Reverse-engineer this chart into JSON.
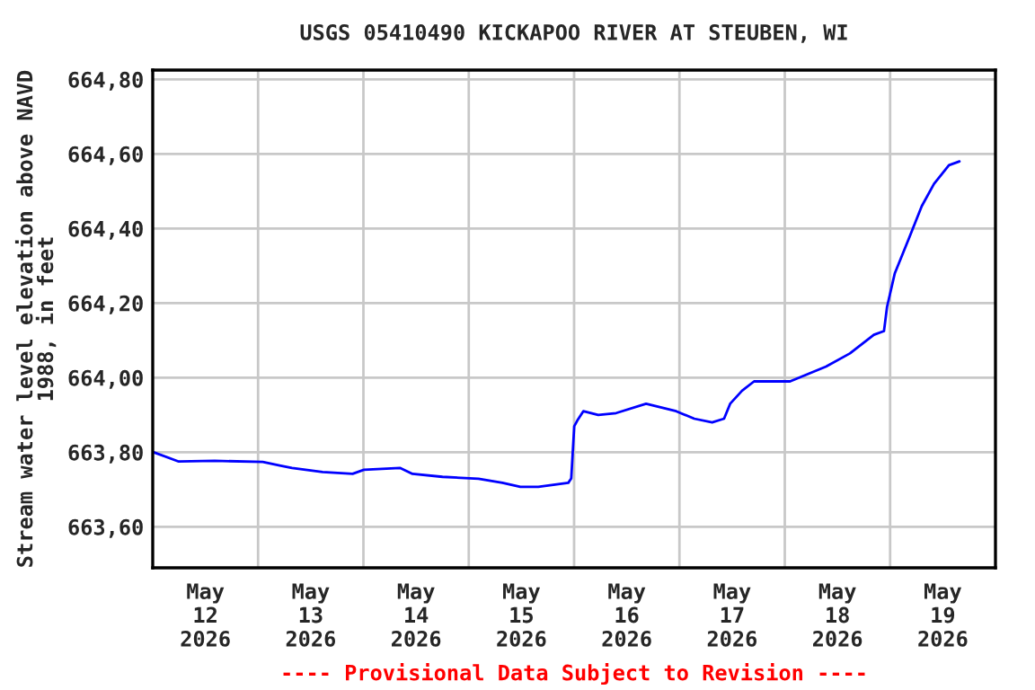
{
  "chart_data": {
    "type": "line",
    "title": "USGS 05410490 KICKAPOO RIVER AT STEUBEN, WI",
    "ylabel": "Stream water level elevation above NAVD\n1988, in feet",
    "annotations": [
      "---- Provisional Data Subject to Revision ----"
    ],
    "x": [
      "2026-05-12T00:12",
      "2026-05-12T05:56",
      "2026-05-12T14:08",
      "2026-05-13T01:04",
      "2026-05-13T05:10",
      "2026-05-13T07:44",
      "2026-05-13T14:42",
      "2026-05-13T21:32",
      "2026-05-14T00:07",
      "2026-05-14T08:19",
      "2026-05-14T11:11",
      "2026-05-14T18:01",
      "2026-05-15T02:13",
      "2026-05-15T07:40",
      "2026-05-15T11:45",
      "2026-05-15T15:51",
      "2026-05-15T22:41",
      "2026-05-15T23:21",
      "2026-05-16T00:02",
      "2026-05-16T00:44",
      "2026-05-16T02:06",
      "2026-05-16T05:30",
      "2026-05-16T09:35",
      "2026-05-16T16:24",
      "2026-05-16T23:16",
      "2026-05-17T03:22",
      "2026-05-17T07:27",
      "2026-05-17T10:10",
      "2026-05-17T11:33",
      "2026-05-17T14:16",
      "2026-05-17T17:00",
      "2026-05-18T01:12",
      "2026-05-18T05:18",
      "2026-05-18T09:24",
      "2026-05-18T14:50",
      "2026-05-18T20:18",
      "2026-05-18T22:36",
      "2026-05-18T23:18",
      "2026-05-19T01:04",
      "2026-05-19T04:30",
      "2026-05-19T07:12",
      "2026-05-19T10:00",
      "2026-05-19T13:24",
      "2026-05-19T15:48"
    ],
    "series": [
      {
        "color": "#0000ff",
        "values": [
          663.8,
          663.775,
          663.777,
          663.774,
          663.764,
          663.758,
          663.747,
          663.742,
          663.753,
          663.758,
          663.742,
          663.734,
          663.729,
          663.718,
          663.707,
          663.707,
          663.718,
          663.73,
          663.87,
          663.885,
          663.91,
          663.9,
          663.905,
          663.93,
          663.91,
          663.89,
          663.88,
          663.89,
          663.93,
          663.965,
          663.99,
          663.99,
          664.01,
          664.03,
          664.065,
          664.115,
          664.125,
          664.19,
          664.28,
          664.38,
          664.46,
          664.52,
          664.57,
          664.58
        ]
      }
    ],
    "xlim": [
      "2026-05-12T00:00",
      "2026-05-20T00:00"
    ],
    "xticks": [
      {
        "value": "2026-05-13T00:00",
        "label": null
      },
      {
        "value": "2026-05-14T00:00",
        "label": null
      },
      {
        "value": "2026-05-15T00:00",
        "label": null
      },
      {
        "value": "2026-05-16T00:00",
        "label": null
      },
      {
        "value": "2026-05-17T00:00",
        "label": null
      },
      {
        "value": "2026-05-18T00:00",
        "label": null
      },
      {
        "value": "2026-05-19T00:00",
        "label": null
      },
      {
        "value": "2026-05-12T12:00",
        "label": "May\n12\n2026"
      },
      {
        "value": "2026-05-13T12:00",
        "label": "May\n13\n2026"
      },
      {
        "value": "2026-05-14T12:00",
        "label": "May\n14\n2026"
      },
      {
        "value": "2026-05-15T12:00",
        "label": "May\n15\n2026"
      },
      {
        "value": "2026-05-16T12:00",
        "label": "May\n16\n2026"
      },
      {
        "value": "2026-05-17T12:00",
        "label": "May\n17\n2026"
      },
      {
        "value": "2026-05-18T12:00",
        "label": "May\n18\n2026"
      },
      {
        "value": "2026-05-19T12:00",
        "label": "May\n19\n2026"
      }
    ],
    "ylim": [
      663.49,
      664.825
    ],
    "yticks": [
      {
        "value": 663.6,
        "label": "663,60"
      },
      {
        "value": 663.8,
        "label": "663,80"
      },
      {
        "value": 664.0,
        "label": "664,00"
      },
      {
        "value": 664.2,
        "label": "664,20"
      },
      {
        "value": 664.4,
        "label": "664,40"
      },
      {
        "value": 664.6,
        "label": "664,60"
      },
      {
        "value": 664.8,
        "label": "664,80"
      }
    ],
    "grid": true,
    "line_style": "solid",
    "marker": "none"
  }
}
